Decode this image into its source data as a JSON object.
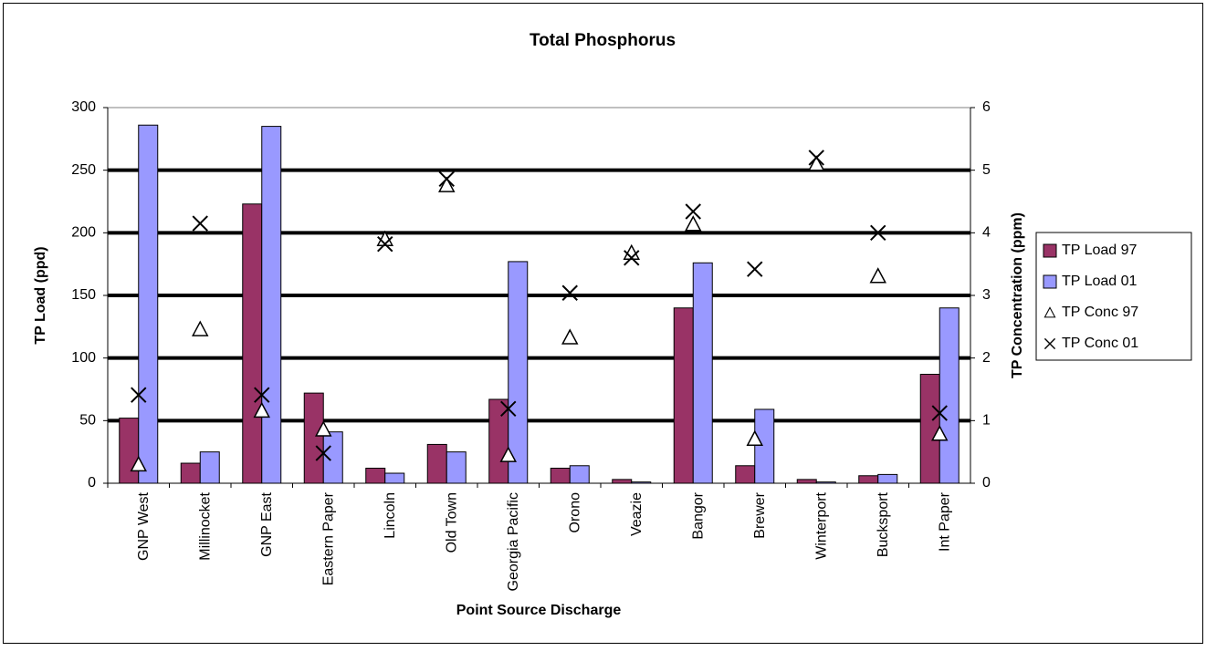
{
  "chart_data": {
    "type": "bar",
    "title": "Total Phosphorus",
    "x_label": "Point Source Discharge",
    "y_label": "TP Load  (ppd)",
    "y2_label": "TP Concentration (ppm)",
    "categories": [
      "GNP West",
      "Millinocket",
      "GNP East",
      "Eastern Paper",
      "Lincoln",
      "Old Town",
      "Georgia Pacific",
      "Orono",
      "Veazie",
      "Bangor",
      "Brewer",
      "Winterport",
      "Bucksport",
      "Int Paper"
    ],
    "series": [
      {
        "name": "TP Load 97",
        "type": "bar",
        "color": "#993366",
        "values": [
          52,
          16,
          223,
          72,
          12,
          31,
          67,
          12,
          3,
          140,
          14,
          3,
          6,
          87
        ]
      },
      {
        "name": "TP Load 01",
        "type": "bar",
        "color": "#9999ff",
        "values": [
          286,
          25,
          285,
          41,
          8,
          25,
          177,
          14,
          1,
          176,
          59,
          1,
          7,
          140
        ]
      },
      {
        "name": "TP Conc 97",
        "type": "scatter",
        "marker": "triangle",
        "color": "#000000",
        "axis": "y2",
        "values": [
          0.3,
          2.46,
          1.16,
          0.86,
          3.9,
          4.76,
          0.45,
          2.33,
          3.68,
          4.14,
          0.71,
          5.1,
          3.31,
          0.79
        ]
      },
      {
        "name": "TP Conc 01",
        "type": "scatter",
        "marker": "x",
        "color": "#000000",
        "axis": "y2",
        "values": [
          1.41,
          4.15,
          1.41,
          0.48,
          3.82,
          4.86,
          1.19,
          3.04,
          3.6,
          4.34,
          3.42,
          5.2,
          4.0,
          1.12
        ]
      }
    ],
    "ylim": [
      0,
      300
    ],
    "yticks": [
      0,
      50,
      100,
      150,
      200,
      250,
      300
    ],
    "y2lim": [
      0,
      6
    ],
    "y2ticks": [
      0,
      1,
      2,
      3,
      4,
      5,
      6
    ],
    "grid": true,
    "legend": "right"
  }
}
